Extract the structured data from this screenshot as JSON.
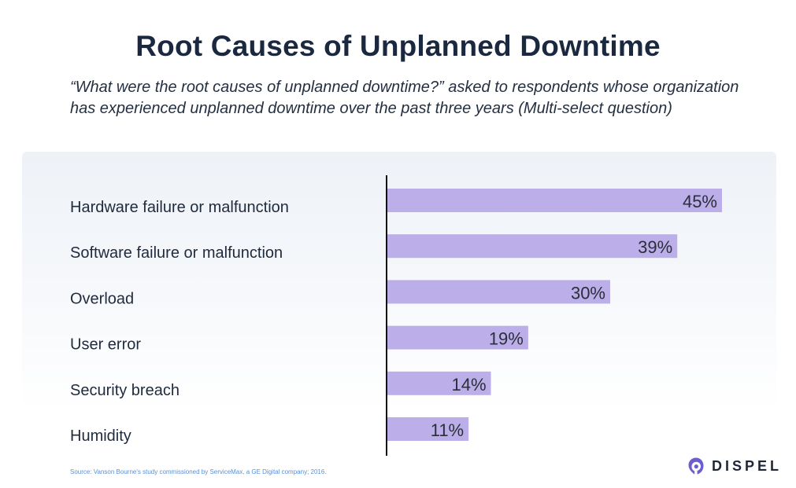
{
  "title": "Root Causes of Unplanned Downtime",
  "subtitle": "“What were the root causes of unplanned downtime?” asked to respondents whose organization has experienced unplanned downtime over the past three years (Multi-select question)",
  "source": "Source: Vanson Bourne's study commissioned by ServiceMax, a GE Digital company; 2016.",
  "brand": {
    "name": "DISPEL",
    "accent": "#6b5fd0"
  },
  "colors": {
    "bar": "#bcaee8",
    "axis": "#111111"
  },
  "chart_data": {
    "type": "bar",
    "orientation": "horizontal",
    "unit": "%",
    "categories": [
      "Hardware failure or malfunction",
      "Software failure or malfunction",
      "Overload",
      "User error",
      "Security breach",
      "Humidity"
    ],
    "values": [
      45,
      39,
      30,
      19,
      14,
      11
    ],
    "data_labels": [
      "45%",
      "39%",
      "30%",
      "19%",
      "14%",
      "11%"
    ],
    "xlim": [
      0,
      50
    ],
    "grid": false,
    "legend": "none"
  }
}
